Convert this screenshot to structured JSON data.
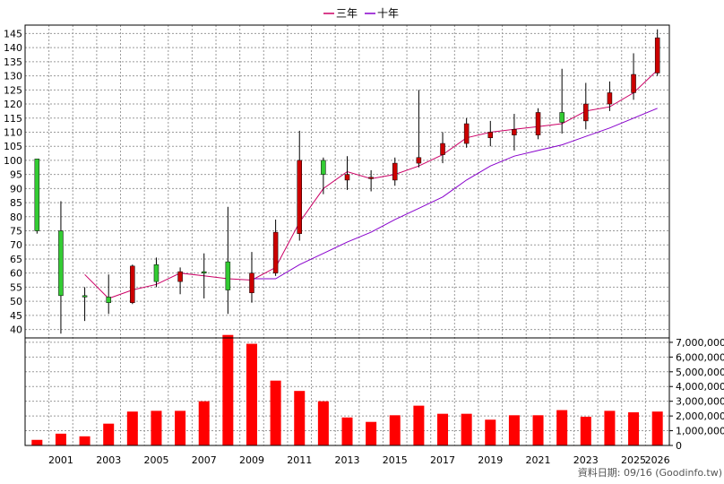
{
  "legend": [
    {
      "label": "三年",
      "color": "#cc0066"
    },
    {
      "label": "十年",
      "color": "#8800cc"
    }
  ],
  "credit": "資料日期: 09/16 (Goodinfo.tw)",
  "chart_data": {
    "type": "candlestick",
    "years": [
      "2000",
      "2001",
      "2002",
      "2003",
      "2004",
      "2005",
      "2006",
      "2007",
      "2008",
      "2009",
      "2010",
      "2011",
      "2012",
      "2013",
      "2014",
      "2015",
      "2016",
      "2017",
      "2018",
      "2019",
      "2020",
      "2021",
      "2022",
      "2023",
      "2024",
      "2025",
      "2026"
    ],
    "x_tick_labels": [
      "2001",
      "2003",
      "2005",
      "2007",
      "2009",
      "2011",
      "2013",
      "2015",
      "2017",
      "2019",
      "2021",
      "2023",
      "2025",
      "2026"
    ],
    "price_axis": {
      "min": 40,
      "max": 145,
      "step": 5,
      "range": [
        37,
        148
      ]
    },
    "volume_axis": {
      "min": 0,
      "max": 7000000,
      "step": 1000000,
      "range": [
        0,
        7300000
      ],
      "labels": [
        "0",
        "1,000,000",
        "2,000,000",
        "3,000,000",
        "4,000,000",
        "5,000,000",
        "6,000,000",
        "7,000,000"
      ]
    },
    "candles": [
      {
        "year": "2000",
        "open": 100.5,
        "close": 75,
        "high": 100.5,
        "low": 74
      },
      {
        "year": "2001",
        "open": 75,
        "close": 52,
        "high": 85.5,
        "low": 38.5
      },
      {
        "year": "2002",
        "open": 52,
        "close": 51.5,
        "high": 55,
        "low": 43
      },
      {
        "year": "2003",
        "open": 51.5,
        "close": 49.5,
        "high": 59.5,
        "low": 45.5
      },
      {
        "year": "2004",
        "open": 49.5,
        "close": 62.5,
        "high": 63,
        "low": 49
      },
      {
        "year": "2005",
        "open": 63,
        "close": 57,
        "high": 65.5,
        "low": 55
      },
      {
        "year": "2006",
        "open": 57,
        "close": 60.5,
        "high": 62,
        "low": 52.5
      },
      {
        "year": "2007",
        "open": 60.5,
        "close": 60,
        "high": 67,
        "low": 51
      },
      {
        "year": "2008",
        "open": 64,
        "close": 54,
        "high": 83.5,
        "low": 45.5
      },
      {
        "year": "2009",
        "open": 53,
        "close": 60,
        "high": 67.5,
        "low": 49.5
      },
      {
        "year": "2010",
        "open": 60,
        "close": 74.5,
        "high": 79,
        "low": 59
      },
      {
        "year": "2011",
        "open": 74,
        "close": 100,
        "high": 110.5,
        "low": 71.5
      },
      {
        "year": "2012",
        "open": 100,
        "close": 95,
        "high": 101,
        "low": 88
      },
      {
        "year": "2013",
        "open": 93,
        "close": 95,
        "high": 101.5,
        "low": 89.5
      },
      {
        "year": "2014",
        "open": 93.5,
        "close": 94,
        "high": 96.5,
        "low": 89
      },
      {
        "year": "2015",
        "open": 93,
        "close": 99,
        "high": 101,
        "low": 91
      },
      {
        "year": "2016",
        "open": 99,
        "close": 101,
        "high": 125,
        "low": 97.5
      },
      {
        "year": "2017",
        "open": 102,
        "close": 106,
        "high": 110,
        "low": 99
      },
      {
        "year": "2018",
        "open": 106,
        "close": 113,
        "high": 115,
        "low": 104.5
      },
      {
        "year": "2019",
        "open": 108,
        "close": 110,
        "high": 114,
        "low": 105
      },
      {
        "year": "2020",
        "open": 109,
        "close": 111,
        "high": 116.5,
        "low": 103.5
      },
      {
        "year": "2021",
        "open": 109,
        "close": 117,
        "high": 118.5,
        "low": 107.5
      },
      {
        "year": "2022",
        "open": 117,
        "close": 113.5,
        "high": 132.5,
        "low": 109.5
      },
      {
        "year": "2023",
        "open": 114,
        "close": 120,
        "high": 127.5,
        "low": 111
      },
      {
        "year": "2024",
        "open": 120,
        "close": 124,
        "high": 128,
        "low": 117.5
      },
      {
        "year": "2025",
        "open": 124,
        "close": 130.5,
        "high": 138,
        "low": 121.5
      },
      {
        "year": "2026",
        "open": 131,
        "close": 143.5,
        "high": 146.5,
        "low": 130
      }
    ],
    "volume": [
      380000,
      800000,
      620000,
      1480000,
      2300000,
      2350000,
      2350000,
      3000000,
      7500000,
      6900000,
      4400000,
      3700000,
      3000000,
      1900000,
      1600000,
      2050000,
      2700000,
      2150000,
      2150000,
      1750000,
      2050000,
      2050000,
      2400000,
      1950000,
      2350000,
      2250000,
      2300000
    ],
    "series": [
      {
        "name": "三年",
        "color": "#cc0066",
        "start": "2002",
        "values": [
          59.5,
          51,
          54,
          56,
          60,
          59,
          58,
          57.5,
          62,
          78,
          90,
          96,
          93.5,
          95,
          98,
          102,
          108,
          110,
          111,
          112,
          113,
          117.5,
          119,
          124,
          132
        ]
      },
      {
        "name": "十年",
        "color": "#8800cc",
        "start": "2009",
        "values": [
          58,
          58,
          63,
          67,
          71,
          74.5,
          79,
          83,
          87,
          93,
          98,
          101.5,
          103.5,
          105.5,
          108.5,
          111.5,
          115,
          118.5
        ]
      }
    ],
    "colors": {
      "up": "#cc0000",
      "down": "#33cc33",
      "volume": "#ff0000",
      "wick": "#000000"
    }
  }
}
